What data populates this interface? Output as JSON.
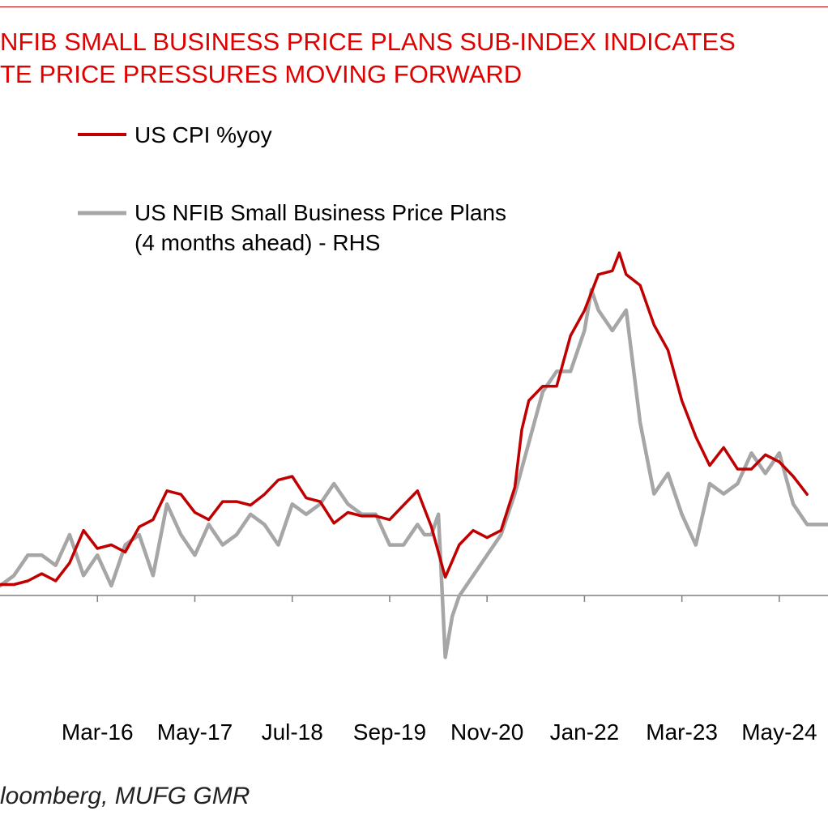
{
  "title_lines": [
    "NFIB SMALL BUSINESS PRICE PLANS SUB-INDEX INDICATES",
    "TE PRICE PRESSURES MOVING FORWARD"
  ],
  "source": "loomberg, MUFG GMR",
  "colors": {
    "title": "#e00000",
    "cpi": "#c00000",
    "nfib": "#a6a6a6",
    "axis": "#808080"
  },
  "chart_data": {
    "type": "line",
    "title": "NFIB SMALL BUSINESS PRICE PLANS SUB-INDEX INDICATES TE PRICE PRESSURES MOVING FORWARD",
    "x_tick_labels": [
      "Mar-16",
      "May-17",
      "Jul-18",
      "Sep-19",
      "Nov-20",
      "Jan-22",
      "Mar-23",
      "May-24"
    ],
    "x_tick_dates": [
      "2016-03",
      "2017-05",
      "2018-07",
      "2019-09",
      "2020-11",
      "2022-01",
      "2023-03",
      "2024-05"
    ],
    "x_range": [
      "2015-01",
      "2024-12"
    ],
    "grid": false,
    "legend_position": "top-left",
    "axes_note": "Left-hand axis (US CPI %yoy) and right-hand axis (NFIB price plans) tick labels are cropped out of the image; values below are estimates in the implied units.",
    "series": [
      {
        "name": "US CPI %yoy",
        "axis": "left",
        "x": [
          "2015-01",
          "2015-03",
          "2015-05",
          "2015-07",
          "2015-09",
          "2015-11",
          "2016-01",
          "2016-03",
          "2016-05",
          "2016-07",
          "2016-09",
          "2016-11",
          "2017-01",
          "2017-03",
          "2017-05",
          "2017-07",
          "2017-09",
          "2017-11",
          "2018-01",
          "2018-03",
          "2018-05",
          "2018-07",
          "2018-09",
          "2018-11",
          "2019-01",
          "2019-03",
          "2019-05",
          "2019-07",
          "2019-09",
          "2019-11",
          "2020-01",
          "2020-03",
          "2020-05",
          "2020-07",
          "2020-09",
          "2020-11",
          "2021-01",
          "2021-03",
          "2021-04",
          "2021-05",
          "2021-07",
          "2021-09",
          "2021-11",
          "2022-01",
          "2022-03",
          "2022-05",
          "2022-06",
          "2022-07",
          "2022-09",
          "2022-11",
          "2023-01",
          "2023-03",
          "2023-05",
          "2023-07",
          "2023-09",
          "2023-11",
          "2024-01",
          "2024-03",
          "2024-05",
          "2024-07",
          "2024-09"
        ],
        "values": [
          -0.1,
          -0.1,
          0.0,
          0.2,
          0.0,
          0.5,
          1.4,
          0.9,
          1.0,
          0.8,
          1.5,
          1.7,
          2.5,
          2.4,
          1.9,
          1.7,
          2.2,
          2.2,
          2.1,
          2.4,
          2.8,
          2.9,
          2.3,
          2.2,
          1.6,
          1.9,
          1.8,
          1.8,
          1.7,
          2.1,
          2.5,
          1.5,
          0.1,
          1.0,
          1.4,
          1.2,
          1.4,
          2.6,
          4.2,
          5.0,
          5.4,
          5.4,
          6.8,
          7.5,
          8.5,
          8.6,
          9.1,
          8.5,
          8.2,
          7.1,
          6.4,
          5.0,
          4.0,
          3.2,
          3.7,
          3.1,
          3.1,
          3.5,
          3.3,
          2.9,
          2.4
        ]
      },
      {
        "name": "US NFIB Small Business Price Plans (4 months  ahead) - RHS",
        "axis": "right",
        "x": [
          "2015-01",
          "2015-03",
          "2015-05",
          "2015-07",
          "2015-09",
          "2015-11",
          "2016-01",
          "2016-03",
          "2016-05",
          "2016-07",
          "2016-09",
          "2016-11",
          "2017-01",
          "2017-03",
          "2017-05",
          "2017-07",
          "2017-09",
          "2017-11",
          "2018-01",
          "2018-03",
          "2018-05",
          "2018-07",
          "2018-09",
          "2018-11",
          "2019-01",
          "2019-03",
          "2019-05",
          "2019-07",
          "2019-09",
          "2019-11",
          "2020-01",
          "2020-02",
          "2020-03",
          "2020-04",
          "2020-05",
          "2020-06",
          "2020-07",
          "2020-09",
          "2020-11",
          "2021-01",
          "2021-03",
          "2021-05",
          "2021-07",
          "2021-09",
          "2021-11",
          "2022-01",
          "2022-02",
          "2022-03",
          "2022-05",
          "2022-07",
          "2022-09",
          "2022-11",
          "2023-01",
          "2023-03",
          "2023-05",
          "2023-07",
          "2023-09",
          "2023-11",
          "2024-01",
          "2024-03",
          "2024-05",
          "2024-07",
          "2024-09",
          "2024-12"
        ],
        "values": [
          17,
          18,
          20,
          20,
          19,
          22,
          18,
          20,
          17,
          21,
          22,
          18,
          25,
          22,
          20,
          23,
          21,
          22,
          24,
          23,
          21,
          25,
          24,
          25,
          27,
          25,
          24,
          24,
          21,
          21,
          23,
          22,
          22,
          24,
          10,
          14,
          16,
          18,
          20,
          22,
          26,
          31,
          36,
          38,
          38,
          42,
          46,
          44,
          42,
          44,
          33,
          26,
          28,
          24,
          21,
          27,
          26,
          27,
          30,
          28,
          30,
          25,
          23,
          23
        ]
      }
    ]
  }
}
